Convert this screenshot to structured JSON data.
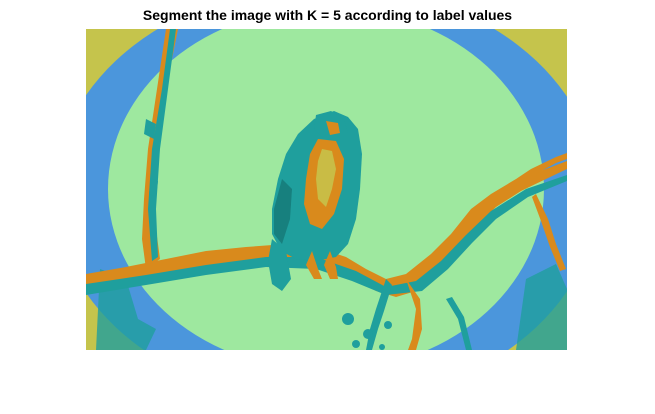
{
  "figure": {
    "title": "Segment the image with K = 5 according to label values"
  },
  "image": {
    "subject": "bird perched on a branch, clustered into 5 color labels",
    "cluster_count": 5,
    "label_colors": {
      "background_center": "#9ee89f",
      "background_ring": "#4b96dc",
      "corner": "#c5c44c",
      "shadow": "#1f9f9d",
      "highlight": "#d98a1c"
    }
  }
}
